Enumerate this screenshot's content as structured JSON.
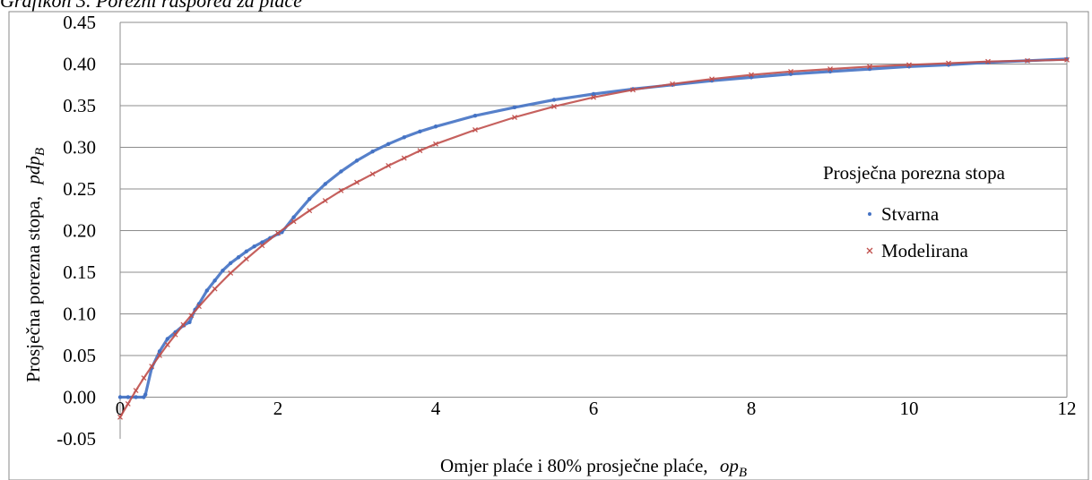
{
  "caption": "Grafikon 3. Porezni raspored za plaće",
  "chart_data": {
    "type": "scatter",
    "xlabel": "Omjer plaće i 80% prosječne plaće,",
    "xlabel_var": "op",
    "xlabel_sub": "B",
    "ylabel": "Prosječna porezna stopa,",
    "ylabel_var": "pdp",
    "ylabel_sub": "B",
    "xlim": [
      0,
      12
    ],
    "ylim": [
      -0.05,
      0.45
    ],
    "x_ticks": [
      "0",
      "2",
      "4",
      "6",
      "8",
      "10",
      "12"
    ],
    "y_ticks": [
      "0.45",
      "0.40",
      "0.35",
      "0.30",
      "0.25",
      "0.20",
      "0.15",
      "0.10",
      "0.05",
      "0.00",
      "-0.05"
    ],
    "grid": "horizontal",
    "legend": {
      "title": "Prosječna porezna stopa",
      "placement": "right"
    },
    "series": [
      {
        "name": "Stvarna",
        "marker": "dot",
        "color": "#4472C4",
        "x": [
          0,
          0.1,
          0.2,
          0.3,
          0.32,
          0.4,
          0.5,
          0.6,
          0.7,
          0.8,
          0.88,
          0.95,
          1.0,
          1.1,
          1.2,
          1.3,
          1.4,
          1.5,
          1.6,
          1.7,
          1.8,
          1.9,
          2.0,
          2.05,
          2.2,
          2.4,
          2.6,
          2.8,
          3.0,
          3.2,
          3.4,
          3.6,
          3.8,
          4.0,
          4.5,
          5.0,
          5.5,
          6.0,
          6.5,
          7.0,
          7.5,
          8.0,
          8.5,
          9.0,
          9.5,
          10.0,
          10.5,
          11.0,
          11.5,
          12.0
        ],
        "y": [
          0,
          0,
          0,
          0,
          0.003,
          0.035,
          0.055,
          0.07,
          0.078,
          0.086,
          0.09,
          0.105,
          0.112,
          0.128,
          0.14,
          0.152,
          0.161,
          0.168,
          0.175,
          0.181,
          0.186,
          0.191,
          0.196,
          0.198,
          0.216,
          0.238,
          0.256,
          0.271,
          0.284,
          0.295,
          0.304,
          0.312,
          0.319,
          0.325,
          0.338,
          0.348,
          0.357,
          0.364,
          0.37,
          0.375,
          0.38,
          0.384,
          0.388,
          0.391,
          0.394,
          0.397,
          0.399,
          0.402,
          0.404,
          0.406
        ]
      },
      {
        "name": "Modelirana",
        "marker": "x",
        "color": "#C0504D",
        "x": [
          0,
          0.1,
          0.2,
          0.3,
          0.4,
          0.5,
          0.6,
          0.7,
          0.8,
          0.9,
          1.0,
          1.2,
          1.4,
          1.6,
          1.8,
          2.0,
          2.2,
          2.4,
          2.6,
          2.8,
          3.0,
          3.2,
          3.4,
          3.6,
          3.8,
          4.0,
          4.5,
          5.0,
          5.5,
          6.0,
          6.5,
          7.0,
          7.5,
          8.0,
          8.5,
          9.0,
          9.5,
          10.0,
          10.5,
          11.0,
          11.5,
          12.0
        ],
        "y": [
          -0.024,
          -0.008,
          0.008,
          0.023,
          0.037,
          0.05,
          0.063,
          0.075,
          0.087,
          0.098,
          0.109,
          0.13,
          0.149,
          0.166,
          0.182,
          0.197,
          0.211,
          0.224,
          0.236,
          0.248,
          0.258,
          0.268,
          0.278,
          0.287,
          0.296,
          0.304,
          0.321,
          0.336,
          0.349,
          0.36,
          0.369,
          0.376,
          0.382,
          0.387,
          0.391,
          0.394,
          0.397,
          0.399,
          0.401,
          0.403,
          0.404,
          0.405
        ]
      }
    ]
  }
}
